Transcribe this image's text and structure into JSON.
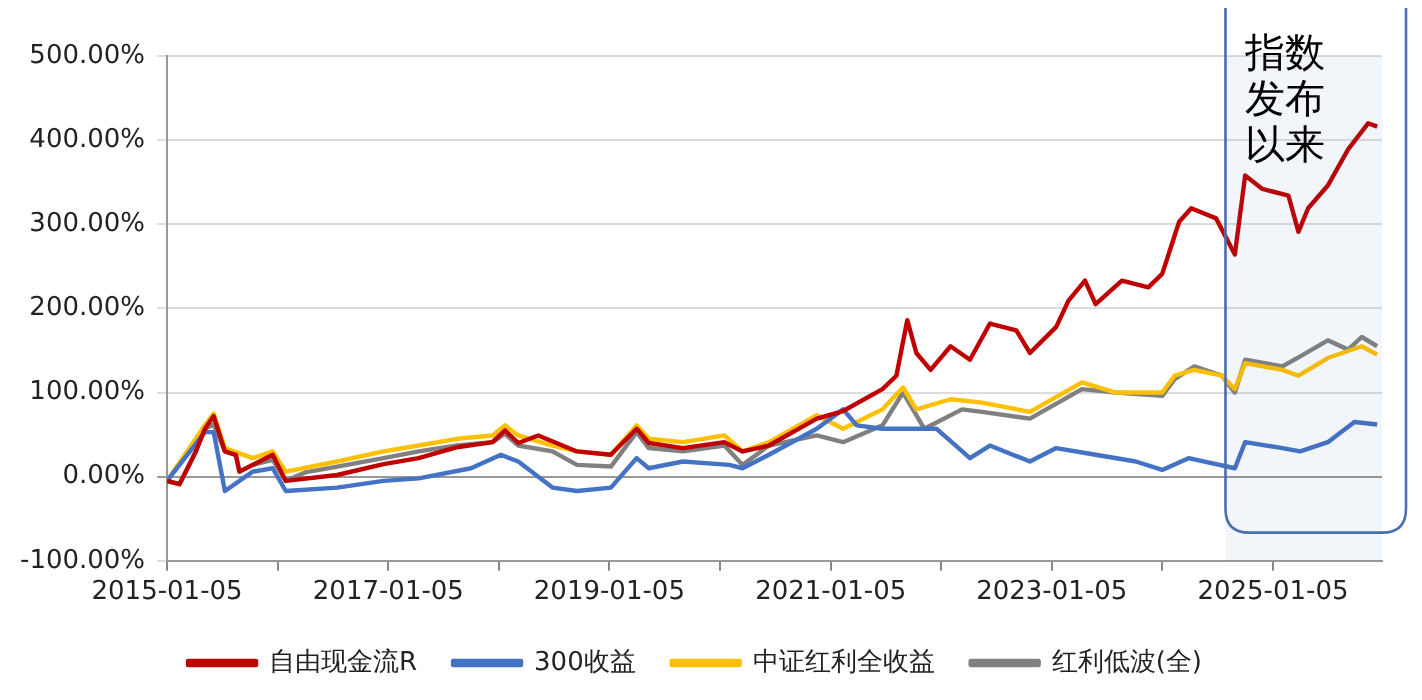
{
  "chart_data": {
    "type": "line",
    "legend": "bottom",
    "grid": "y",
    "marker": "none",
    "line_style": "solid",
    "xlim": [
      "2015-01-05",
      "2025-12-31"
    ],
    "xticks": [
      {
        "value": "2015-01-05",
        "label": "2015-01-05"
      },
      {
        "value": "2016-01-05",
        "label": null
      },
      {
        "value": "2017-01-05",
        "label": "2017-01-05"
      },
      {
        "value": "2018-01-05",
        "label": null
      },
      {
        "value": "2019-01-05",
        "label": "2019-01-05"
      },
      {
        "value": "2020-01-05",
        "label": null
      },
      {
        "value": "2021-01-05",
        "label": "2021-01-05"
      },
      {
        "value": "2022-01-05",
        "label": null
      },
      {
        "value": "2023-01-05",
        "label": "2023-01-05"
      },
      {
        "value": "2024-01-05",
        "label": null
      },
      {
        "value": "2025-01-05",
        "label": "2025-01-05"
      }
    ],
    "ylim": [
      -100,
      500
    ],
    "yticks": [
      {
        "value": -100,
        "label": "-100.00%"
      },
      {
        "value": 0,
        "label": "0.00%"
      },
      {
        "value": 100,
        "label": "100.00%"
      },
      {
        "value": 200,
        "label": "200.00%"
      },
      {
        "value": 300,
        "label": "300.00%"
      },
      {
        "value": 400,
        "label": "400.00%"
      },
      {
        "value": 500,
        "label": "500.00%"
      }
    ],
    "bands": [
      {
        "axis": "x",
        "from": "2024-08-01",
        "to": "2025-12-31",
        "label": "指数发布以来",
        "color": "#4a6fb0"
      }
    ],
    "series": [
      {
        "name": "自由现金流R",
        "color": "#c00000",
        "x": [
          "2015-01-05",
          "2015-02-15",
          "2015-04-10",
          "2015-05-10",
          "2015-06-08",
          "2015-07-15",
          "2015-08-20",
          "2015-09-01",
          "2015-10-15",
          "2015-12-20",
          "2016-02-01",
          "2016-07-20",
          "2016-12-20",
          "2017-04-15",
          "2017-08-20",
          "2017-12-15",
          "2018-01-25",
          "2018-03-10",
          "2018-05-15",
          "2018-09-20",
          "2019-01-10",
          "2019-04-05",
          "2019-05-15",
          "2019-09-05",
          "2020-01-20",
          "2020-03-20",
          "2020-06-15",
          "2020-11-20",
          "2021-02-15",
          "2021-06-25",
          "2021-08-10",
          "2021-09-15",
          "2021-10-15",
          "2021-12-01",
          "2022-02-05",
          "2022-04-10",
          "2022-06-15",
          "2022-09-10",
          "2022-10-25",
          "2023-01-20",
          "2023-03-01",
          "2023-04-25",
          "2023-05-30",
          "2023-08-25",
          "2023-11-20",
          "2024-01-05",
          "2024-03-01",
          "2024-04-10",
          "2024-07-01",
          "2024-09-01",
          "2024-10-05",
          "2024-12-01",
          "2025-02-25",
          "2025-03-30",
          "2025-05-01",
          "2025-07-05",
          "2025-09-10",
          "2025-11-15",
          "2025-12-15"
        ],
        "values": [
          -5,
          -9,
          30,
          57,
          72,
          30,
          26,
          6,
          14,
          26,
          -5,
          2,
          15,
          22,
          35,
          41,
          55,
          40,
          49,
          30,
          26,
          57,
          40,
          34,
          41,
          30,
          37,
          69,
          78,
          104,
          120,
          186,
          147,
          127,
          155,
          139,
          182,
          174,
          147,
          178,
          209,
          233,
          205,
          233,
          225,
          241,
          303,
          319,
          307,
          264,
          358,
          342,
          334,
          291,
          319,
          346,
          389,
          420,
          416
        ]
      },
      {
        "name": "300收益",
        "color": "#4472c4",
        "x": [
          "2015-01-05",
          "2015-05-10",
          "2015-06-08",
          "2015-07-15",
          "2015-10-15",
          "2015-12-20",
          "2016-02-01",
          "2016-07-20",
          "2016-12-20",
          "2017-04-15",
          "2017-10-05",
          "2018-01-12",
          "2018-03-10",
          "2018-07-01",
          "2018-09-20",
          "2019-01-10",
          "2019-04-05",
          "2019-05-15",
          "2019-09-05",
          "2020-02-05",
          "2020-03-20",
          "2020-06-15",
          "2020-11-20",
          "2021-02-15",
          "2021-04-01",
          "2021-06-25",
          "2021-12-20",
          "2022-04-10",
          "2022-06-15",
          "2022-10-25",
          "2023-01-20",
          "2023-05-30",
          "2023-10-10",
          "2024-01-05",
          "2024-04-01",
          "2024-09-01",
          "2024-10-05",
          "2025-02-05",
          "2025-04-05",
          "2025-07-05",
          "2025-10-01",
          "2025-12-15"
        ],
        "values": [
          -5,
          53,
          53,
          -17,
          6,
          10,
          -17,
          -13,
          -5,
          -2,
          10,
          26,
          18,
          -13,
          -17,
          -13,
          22,
          10,
          18,
          14,
          10,
          26,
          57,
          80,
          61,
          57,
          57,
          22,
          37,
          18,
          34,
          26,
          18,
          8,
          22,
          10,
          41,
          34,
          30,
          41,
          65,
          62
        ]
      },
      {
        "name": "中证红利全收益",
        "color": "#ffc000",
        "x": [
          "2015-01-05",
          "2015-05-10",
          "2015-06-08",
          "2015-07-15",
          "2015-10-15",
          "2015-12-20",
          "2016-02-01",
          "2016-07-20",
          "2016-12-20",
          "2017-04-15",
          "2017-08-20",
          "2017-12-15",
          "2018-01-25",
          "2018-03-10",
          "2018-07-01",
          "2018-09-20",
          "2019-01-10",
          "2019-04-05",
          "2019-05-15",
          "2019-09-05",
          "2020-01-20",
          "2020-03-20",
          "2020-06-15",
          "2020-11-20",
          "2021-02-15",
          "2021-06-25",
          "2021-09-01",
          "2021-10-15",
          "2022-02-05",
          "2022-05-20",
          "2022-10-25",
          "2023-04-15",
          "2023-08-05",
          "2024-01-05",
          "2024-02-15",
          "2024-04-20",
          "2024-07-20",
          "2024-09-01",
          "2024-10-05",
          "2025-02-05",
          "2025-03-30",
          "2025-07-05",
          "2025-10-25",
          "2025-12-15"
        ],
        "values": [
          -5,
          61,
          75,
          34,
          22,
          30,
          6,
          18,
          30,
          37,
          45,
          49,
          61,
          49,
          37,
          30,
          26,
          61,
          45,
          41,
          49,
          30,
          41,
          73,
          57,
          80,
          106,
          80,
          92,
          88,
          77,
          112,
          100,
          100,
          120,
          127,
          120,
          104,
          135,
          127,
          120,
          141,
          155,
          145
        ]
      },
      {
        "name": "红利低波(全)",
        "color": "#808080",
        "x": [
          "2015-01-05",
          "2015-02-15",
          "2015-04-10",
          "2015-05-10",
          "2015-06-08",
          "2015-07-15",
          "2015-08-20",
          "2015-09-01",
          "2015-10-15",
          "2015-12-20",
          "2016-02-01",
          "2016-04-05",
          "2016-07-20",
          "2016-12-20",
          "2017-04-15",
          "2017-08-20",
          "2017-12-15",
          "2018-01-25",
          "2018-03-10",
          "2018-07-01",
          "2018-09-20",
          "2019-01-10",
          "2019-04-05",
          "2019-05-15",
          "2019-09-05",
          "2020-01-20",
          "2020-03-20",
          "2020-06-15",
          "2020-11-20",
          "2021-02-15",
          "2021-06-25",
          "2021-09-01",
          "2021-11-10",
          "2022-03-15",
          "2022-05-20",
          "2022-10-25",
          "2023-04-15",
          "2023-08-05",
          "2024-01-05",
          "2024-02-15",
          "2024-04-20",
          "2024-07-20",
          "2024-09-01",
          "2024-10-05",
          "2025-02-05",
          "2025-04-05",
          "2025-07-05",
          "2025-09-10",
          "2025-10-25",
          "2025-12-15"
        ],
        "values": [
          -5,
          -9,
          30,
          57,
          62,
          30,
          26,
          6,
          14,
          20,
          -5,
          5,
          12,
          22,
          30,
          37,
          41,
          51,
          37,
          30,
          14,
          12,
          53,
          34,
          30,
          37,
          14,
          37,
          49,
          41,
          61,
          100,
          57,
          80,
          77,
          69,
          104,
          100,
          96,
          116,
          131,
          120,
          100,
          139,
          131,
          143,
          162,
          151,
          166,
          155
        ]
      }
    ]
  }
}
